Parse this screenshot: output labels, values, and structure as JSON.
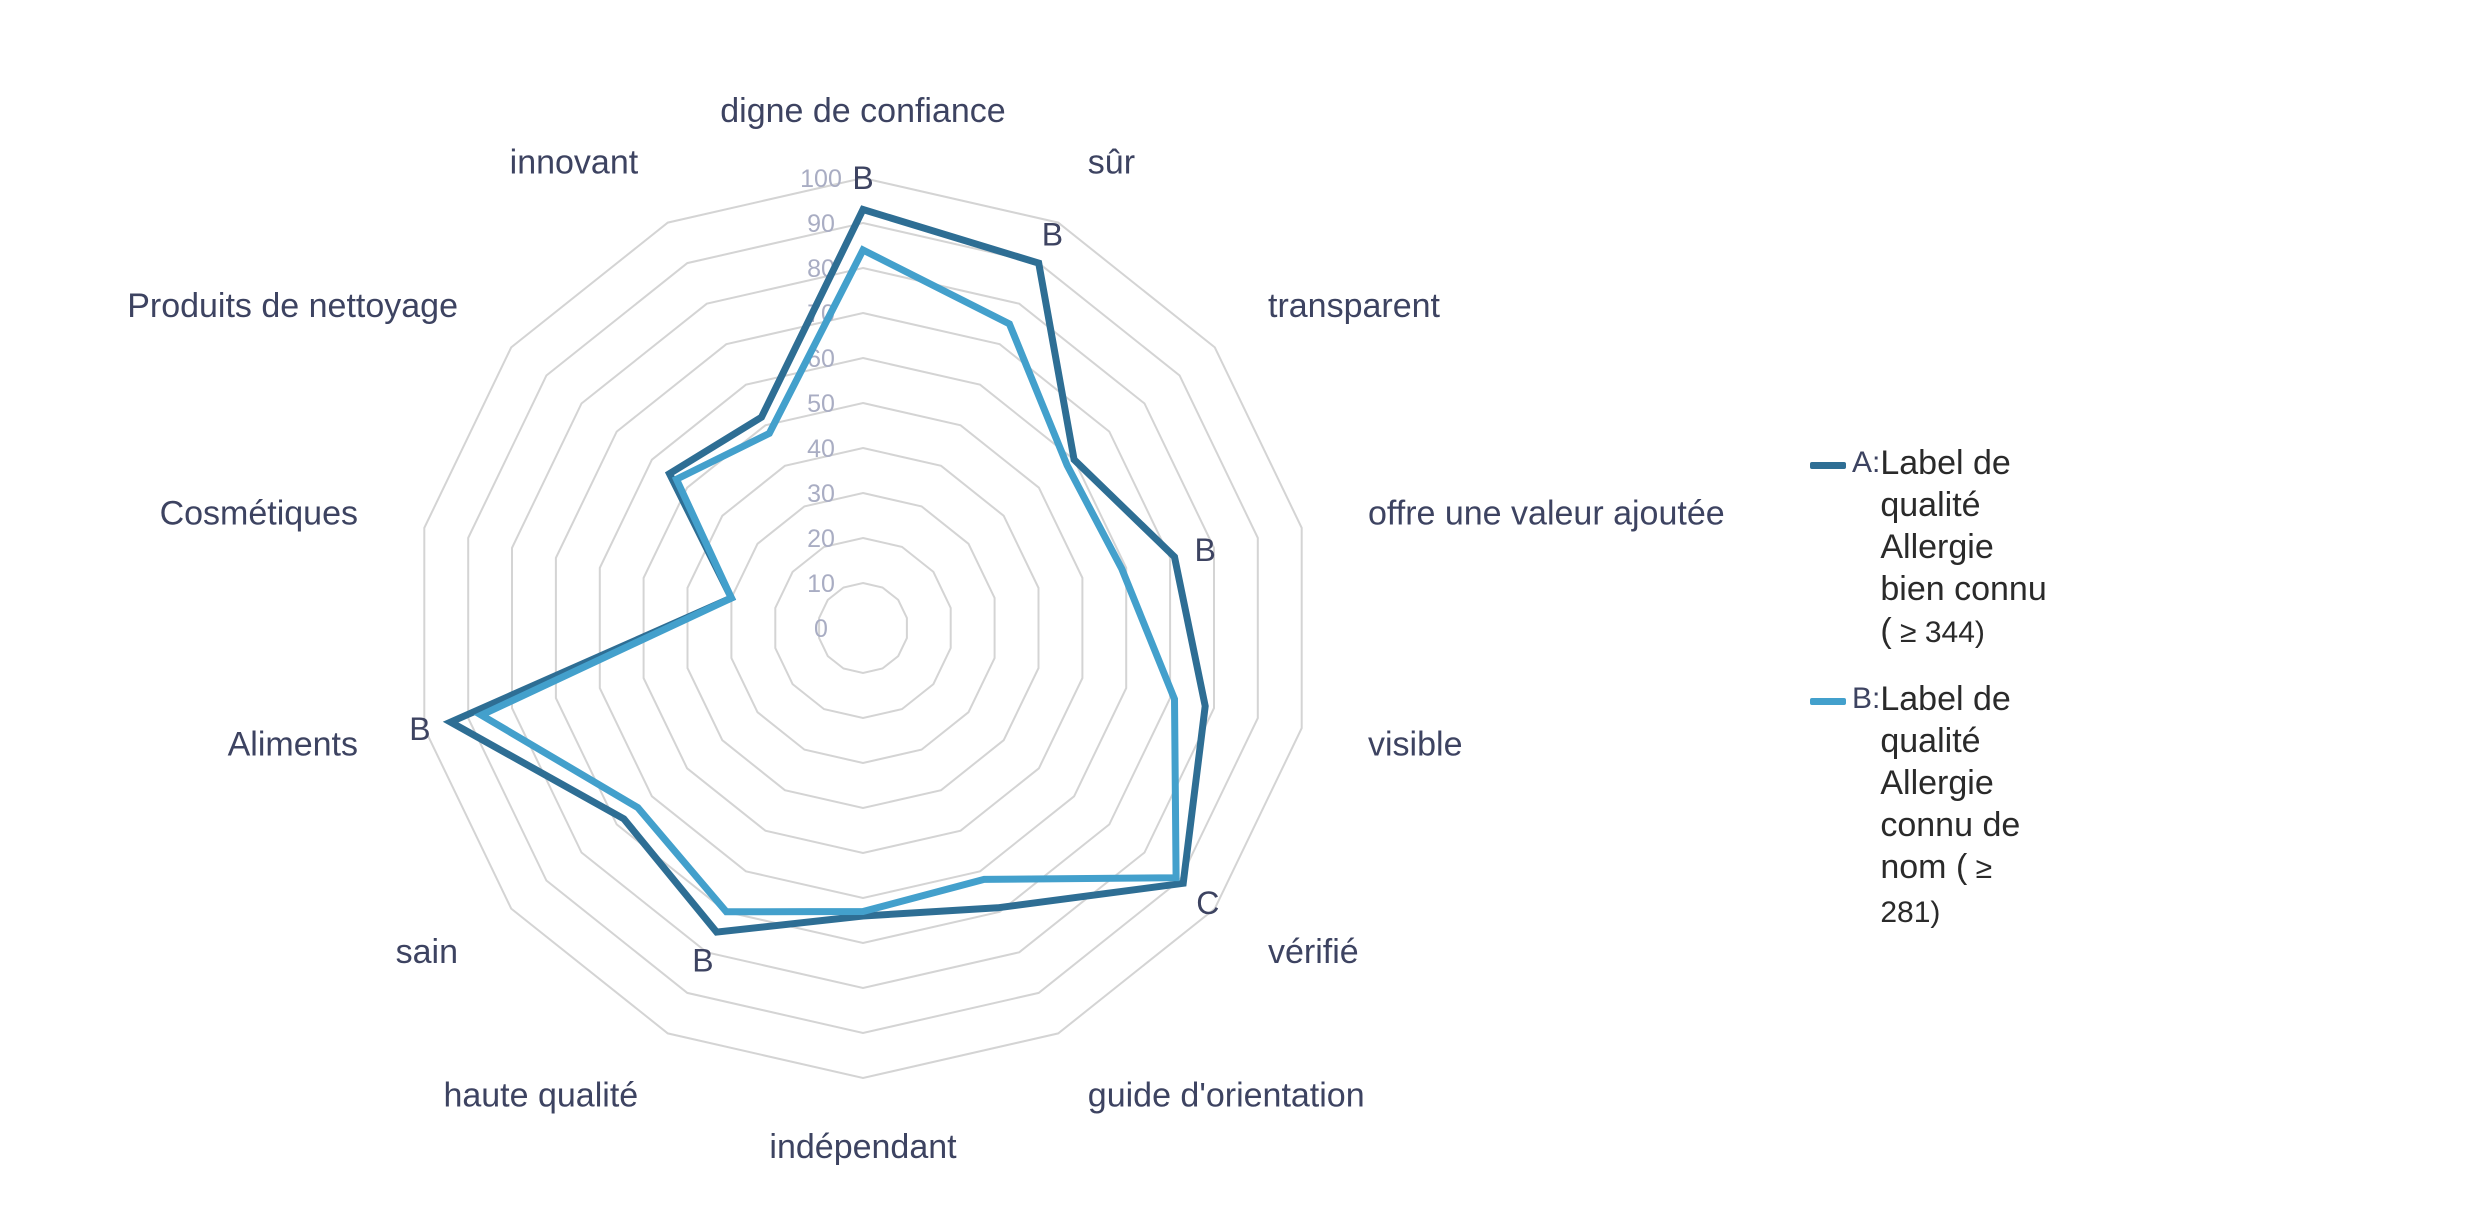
{
  "chart_data": {
    "type": "radar",
    "title": "",
    "categories": [
      "digne de confiance",
      "sûr",
      "transparent",
      "offre une valeur ajoutée",
      "visible",
      "vérifié",
      "guide d'orientation",
      "indépendant",
      "haute qualité",
      "sain",
      "Aliments",
      "Cosmétiques",
      "Produits de nettoyage",
      "innovant"
    ],
    "radial_ticks": [
      "0",
      "10",
      "20",
      "30",
      "40",
      "50",
      "60",
      "70",
      "80",
      "90",
      "100"
    ],
    "rlim": [
      0,
      100
    ],
    "series": [
      {
        "name": "A",
        "values": [
          93,
          90,
          60,
          71,
          78,
          91,
          69,
          64,
          75,
          68,
          94,
          30,
          55,
          52
        ]
      },
      {
        "name": "B",
        "values": [
          84,
          75,
          58,
          59,
          71,
          89,
          62,
          63,
          70,
          64,
          87,
          30,
          53,
          48
        ]
      }
    ],
    "point_labels": [
      {
        "category": "digne de confiance",
        "text": "B"
      },
      {
        "category": "sûr",
        "text": "B"
      },
      {
        "category": "offre une valeur ajoutée",
        "text": "B"
      },
      {
        "category": "vérifié",
        "text": "C"
      },
      {
        "category": "haute qualité",
        "text": "B"
      },
      {
        "category": "Aliments",
        "text": "B"
      }
    ],
    "colors": {
      "A": "#2e6e94",
      "B": "#43a0cc",
      "grid": "#d4d4d4"
    },
    "legend": {
      "placement": "right",
      "items": [
        {
          "series": "A",
          "letter": "A:",
          "line1": "Label de qualité Allergie",
          "line2": "bien connu (",
          "n": " ≥ 344)"
        },
        {
          "series": "B",
          "letter": "B:",
          "line1": "Label de qualité Allergie",
          "line2": "connu de nom (",
          "n": " ≥ 281)"
        }
      ]
    }
  }
}
